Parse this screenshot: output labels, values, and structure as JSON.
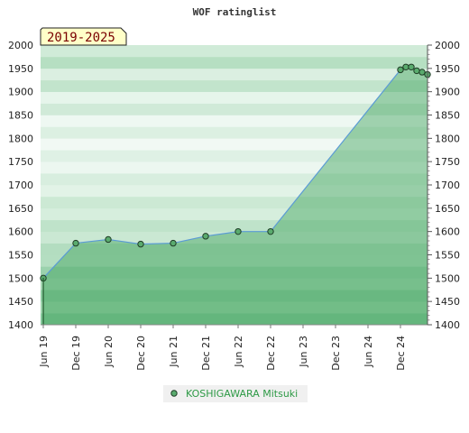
{
  "chart_data": {
    "type": "area",
    "title": "WOF ratinglist",
    "period_label": "2019-2025",
    "ylim": [
      1400,
      2000
    ],
    "y_ticks": [
      1400,
      1450,
      1500,
      1550,
      1600,
      1650,
      1700,
      1750,
      1800,
      1850,
      1900,
      1950,
      2000
    ],
    "x_ticks": [
      "Jun 19",
      "Dec 19",
      "Jun 20",
      "Dec 20",
      "Jun 21",
      "Dec 21",
      "Jun 22",
      "Dec 22",
      "Jun 23",
      "Dec 23",
      "Jun 24",
      "Dec 24"
    ],
    "y_axis_both_sides": true,
    "legend_position": "bottom-center",
    "series": [
      {
        "name": "KOSHIGAWARA Mitsuki",
        "color": "#5aab6e",
        "line_color": "#5b9bd5",
        "points": [
          {
            "x": "2019-06",
            "y": 1500
          },
          {
            "x": "2019-12",
            "y": 1575
          },
          {
            "x": "2020-06",
            "y": 1583
          },
          {
            "x": "2020-12",
            "y": 1573
          },
          {
            "x": "2021-06",
            "y": 1575
          },
          {
            "x": "2021-12",
            "y": 1590
          },
          {
            "x": "2022-06",
            "y": 1600
          },
          {
            "x": "2022-12",
            "y": 1600
          },
          {
            "x": "2024-12",
            "y": 1947
          },
          {
            "x": "2025-01",
            "y": 1953
          },
          {
            "x": "2025-02",
            "y": 1953
          },
          {
            "x": "2025-03",
            "y": 1945
          },
          {
            "x": "2025-04",
            "y": 1942
          },
          {
            "x": "2025-05",
            "y": 1937
          }
        ]
      }
    ]
  }
}
